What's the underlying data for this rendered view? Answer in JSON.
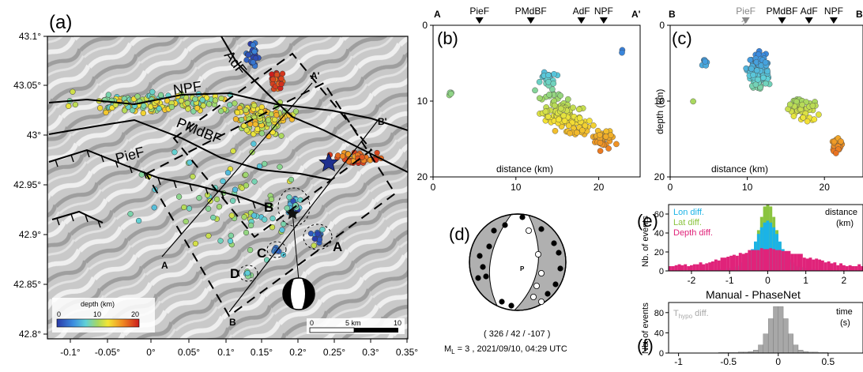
{
  "figure": {
    "panel_labels": {
      "a": "(a)",
      "b": "(b)",
      "c": "(c)",
      "d": "(d)",
      "e": "(e)",
      "f": "(f)"
    },
    "map": {
      "lat_ticks": [
        "43.1°",
        "43.05°",
        "43°",
        "42.95°",
        "42.9°",
        "42.85°",
        "42.8°"
      ],
      "lon_ticks": [
        "-0.1°",
        "-0.05°",
        "0°",
        "0.05°",
        "0.1°",
        "0.15°",
        "0.2°",
        "0.25°",
        "0.3°",
        "0.35°"
      ],
      "fault_labels": [
        "AdF",
        "NPF",
        "PMdBF",
        "PieF"
      ],
      "profile_endpoints": {
        "A": "A",
        "A_prime": "A'",
        "B": "B",
        "B_prime": "B'"
      },
      "cluster_labels": [
        "A",
        "B",
        "C",
        "D"
      ],
      "colorbar": {
        "title": "depth (km)",
        "ticks": [
          "0",
          "10",
          "20"
        ]
      },
      "scalebar": {
        "ticks": [
          "0",
          "5 km",
          "10"
        ]
      }
    },
    "section_b": {
      "left_end": "A",
      "right_end": "A'",
      "faults": [
        "PieF",
        "PMdBF",
        "AdF",
        "NPF"
      ],
      "x_ticks": [
        "0",
        "10",
        "20"
      ],
      "y_ticks": [
        "0",
        "10",
        "20"
      ],
      "xlabel": "distance (km)"
    },
    "section_c": {
      "left_end": "B",
      "right_end": "B'",
      "faults": [
        "PieF",
        "PMdBF",
        "AdF",
        "NPF"
      ],
      "uncertain_mark": "?",
      "x_ticks": [
        "0",
        "10",
        "20"
      ],
      "y_ticks": [
        "0",
        "10",
        "20"
      ],
      "xlabel": "distance (km)",
      "ylabel": "depth (km)"
    },
    "mechanism": {
      "p_label": "P",
      "params": "( 326 / 42 / -107 )",
      "magnitude_prefix": "M",
      "magnitude_sub": "L",
      "event": " = 3  ,  2021/09/10, 04:29 UTC"
    },
    "hist_e": {
      "legend": [
        "Lon diff.",
        "Lat diff.",
        "Depth diff."
      ],
      "unit_line1": "distance",
      "unit_line2": "(km)",
      "ylabel": "Nb. of events",
      "y_ticks": [
        "0",
        "20",
        "40",
        "60"
      ],
      "x_ticks": [
        "-2",
        "-1",
        "0",
        "1",
        "2"
      ],
      "colors": {
        "lon": "#1bb3e6",
        "lat": "#8bc43f",
        "depth": "#e0237a"
      }
    },
    "hist_f": {
      "title": "Manual - PhaseNet",
      "legend_main": "T",
      "legend_sub": "hypo",
      "legend_rest": " diff.",
      "unit_line1": "time",
      "unit_line2": "(s)",
      "ylabel": "Nb. of events",
      "y_ticks": [
        "0",
        "40",
        "80"
      ],
      "x_ticks": [
        "-1",
        "-0.5",
        "0",
        "0.5"
      ],
      "color": "#a8a8a8"
    }
  }
}
